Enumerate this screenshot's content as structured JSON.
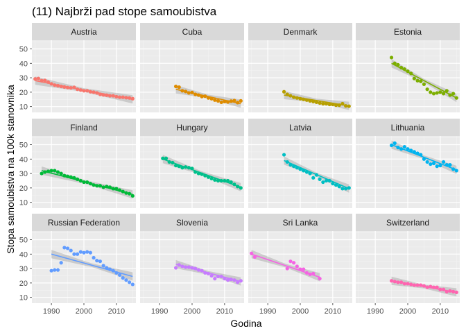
{
  "chart_data": {
    "type": "scatter",
    "title": "(11) Najbrži pad stope samoubistva",
    "xlabel": "Godina",
    "ylabel": "Stopa samoubistva na 100k stanovnika",
    "xlim": [
      1984,
      2016
    ],
    "ylim": [
      6,
      56
    ],
    "x_ticks": [
      1990,
      2000,
      2010
    ],
    "y_ticks": [
      10,
      20,
      30,
      40,
      50
    ],
    "grid": true,
    "legend": "none",
    "trend": "linear fit with confidence band",
    "panels": [
      {
        "name": "Austria",
        "color": "#F8766D",
        "x": [
          1985,
          1986,
          1987,
          1988,
          1989,
          1990,
          1991,
          1992,
          1993,
          1994,
          1995,
          1996,
          1997,
          1998,
          1999,
          2000,
          2001,
          2002,
          2003,
          2004,
          2005,
          2006,
          2007,
          2008,
          2009,
          2010,
          2011,
          2012,
          2013,
          2014,
          2015
        ],
        "y": [
          29.2,
          29.5,
          28.0,
          28.2,
          27.0,
          25.8,
          24.9,
          24.5,
          24.0,
          23.6,
          23.2,
          23.0,
          23.4,
          22.0,
          21.5,
          21.0,
          21.0,
          20.3,
          20.0,
          19.5,
          18.5,
          18.1,
          17.9,
          17.5,
          17.5,
          16.9,
          16.5,
          16.5,
          16.2,
          16.0,
          15.5
        ],
        "fit": [
          28.0,
          15.0
        ]
      },
      {
        "name": "Cuba",
        "color": "#DE8C00",
        "x": [
          1995,
          1996,
          1997,
          1998,
          1999,
          2000,
          2001,
          2002,
          2003,
          2004,
          2005,
          2006,
          2007,
          2008,
          2009,
          2010,
          2011,
          2012,
          2013,
          2014,
          2015
        ],
        "y": [
          24.0,
          23.5,
          21.0,
          20.5,
          19.5,
          19.8,
          18.5,
          18.0,
          17.0,
          17.2,
          16.0,
          15.5,
          14.5,
          14.0,
          13.0,
          13.5,
          13.2,
          13.8,
          14.2,
          12.8,
          14.0
        ],
        "fit": [
          22.0,
          12.0
        ]
      },
      {
        "name": "Denmark",
        "color": "#B79F00",
        "x": [
          1995,
          1996,
          1997,
          1998,
          1999,
          2000,
          2001,
          2002,
          2003,
          2004,
          2005,
          2006,
          2007,
          2008,
          2009,
          2010,
          2011,
          2012,
          2013,
          2014,
          2015
        ],
        "y": [
          20.3,
          18.5,
          17.5,
          16.5,
          16.0,
          15.5,
          15.0,
          14.5,
          14.0,
          13.5,
          13.0,
          12.5,
          12.0,
          12.0,
          11.5,
          11.5,
          11.0,
          11.0,
          12.0,
          10.5,
          10.3
        ],
        "fit": [
          18.0,
          10.5
        ]
      },
      {
        "name": "Estonia",
        "color": "#7CAE00",
        "x": [
          1995,
          1996,
          1997,
          1998,
          1999,
          2000,
          2001,
          2002,
          2003,
          2004,
          2005,
          2006,
          2007,
          2008,
          2009,
          2010,
          2011,
          2012,
          2013,
          2014,
          2015
        ],
        "y": [
          44.0,
          40.0,
          39.0,
          37.0,
          36.0,
          34.5,
          33.0,
          29.5,
          28.0,
          27.5,
          25.5,
          22.0,
          20.0,
          19.0,
          19.5,
          20.0,
          19.0,
          21.0,
          18.0,
          19.0,
          16.0
        ],
        "fit": [
          40.0,
          16.0
        ]
      },
      {
        "name": "Finland",
        "color": "#00BA38",
        "x": [
          1987,
          1988,
          1989,
          1990,
          1991,
          1992,
          1993,
          1994,
          1995,
          1996,
          1997,
          1998,
          1999,
          2000,
          2001,
          2002,
          2003,
          2004,
          2005,
          2006,
          2007,
          2008,
          2009,
          2010,
          2011,
          2012,
          2013,
          2014,
          2015
        ],
        "y": [
          30.0,
          31.0,
          31.5,
          32.0,
          32.0,
          31.0,
          30.0,
          28.5,
          28.0,
          27.5,
          27.0,
          26.0,
          25.0,
          24.0,
          24.0,
          23.0,
          22.0,
          21.5,
          21.5,
          20.5,
          21.0,
          20.5,
          19.5,
          19.5,
          18.5,
          17.5,
          16.5,
          16.0,
          14.5
        ],
        "fit": [
          32.0,
          15.5
        ]
      },
      {
        "name": "Hungary",
        "color": "#00C08B",
        "x": [
          1991,
          1992,
          1993,
          1994,
          1995,
          1996,
          1997,
          1998,
          1999,
          2000,
          2001,
          2002,
          2003,
          2004,
          2005,
          2006,
          2007,
          2008,
          2009,
          2010,
          2011,
          2012,
          2013,
          2014,
          2015
        ],
        "y": [
          40.5,
          40.5,
          38.0,
          37.5,
          35.5,
          35.0,
          34.0,
          34.5,
          34.0,
          33.5,
          31.0,
          30.0,
          29.5,
          28.5,
          27.5,
          26.5,
          25.5,
          25.0,
          25.0,
          25.0,
          25.0,
          24.0,
          22.5,
          21.0,
          20.0
        ],
        "fit": [
          40.0,
          20.5
        ]
      },
      {
        "name": "Latvia",
        "color": "#00BFC4",
        "x": [
          1995,
          1996,
          1997,
          1998,
          1999,
          2000,
          2001,
          2002,
          2003,
          2004,
          2005,
          2006,
          2007,
          2008,
          2009,
          2010,
          2011,
          2012,
          2013,
          2014,
          2015
        ],
        "y": [
          43.0,
          38.0,
          36.0,
          35.0,
          34.0,
          33.0,
          32.0,
          31.0,
          30.0,
          27.0,
          29.0,
          26.0,
          24.0,
          25.0,
          25.0,
          23.0,
          22.0,
          21.0,
          19.5,
          19.5,
          20.0
        ],
        "fit": [
          39.0,
          19.5
        ]
      },
      {
        "name": "Lithuania",
        "color": "#00B4F0",
        "x": [
          1995,
          1996,
          1997,
          1998,
          1999,
          2000,
          2001,
          2002,
          2003,
          2004,
          2005,
          2006,
          2007,
          2008,
          2009,
          2010,
          2011,
          2012,
          2013,
          2014,
          2015
        ],
        "y": [
          49.5,
          51.0,
          48.0,
          47.0,
          48.5,
          47.0,
          46.0,
          45.0,
          44.0,
          43.0,
          40.0,
          38.0,
          36.5,
          37.0,
          35.0,
          35.5,
          38.0,
          36.0,
          36.0,
          33.0,
          32.0
        ],
        "fit": [
          50.0,
          32.5
        ]
      },
      {
        "name": "Russian Federation",
        "color": "#619CFF",
        "x": [
          1990,
          1991,
          1992,
          1993,
          1994,
          1995,
          1996,
          1997,
          1998,
          1999,
          2000,
          2001,
          2002,
          2003,
          2004,
          2005,
          2006,
          2007,
          2008,
          2009,
          2010,
          2011,
          2012,
          2013,
          2014,
          2015
        ],
        "y": [
          28.5,
          29.0,
          29.0,
          34.0,
          44.5,
          44.0,
          42.5,
          40.0,
          40.0,
          41.5,
          41.0,
          41.5,
          41.0,
          37.5,
          35.5,
          35.0,
          32.0,
          30.5,
          29.5,
          28.5,
          27.0,
          25.5,
          23.5,
          22.0,
          20.5,
          19.0
        ],
        "fit": [
          40.0,
          24.5
        ]
      },
      {
        "name": "Slovenia",
        "color": "#C77CFF",
        "x": [
          1995,
          1996,
          1997,
          1998,
          1999,
          2000,
          2001,
          2002,
          2003,
          2004,
          2005,
          2006,
          2007,
          2008,
          2009,
          2010,
          2011,
          2012,
          2013,
          2014,
          2015
        ],
        "y": [
          30.5,
          32.5,
          31.5,
          31.0,
          31.0,
          30.5,
          30.0,
          29.0,
          28.5,
          27.0,
          26.5,
          25.0,
          23.0,
          24.5,
          24.5,
          23.0,
          22.0,
          22.5,
          22.0,
          20.5,
          21.5
        ],
        "fit": [
          33.0,
          21.0
        ]
      },
      {
        "name": "Sri Lanka",
        "color": "#F564E3",
        "x": [
          1985,
          1986,
          1996,
          1997,
          1998,
          1999,
          2000,
          2001,
          2002,
          2003,
          2004,
          2006
        ],
        "y": [
          40.5,
          38.0,
          30.0,
          35.0,
          34.0,
          31.5,
          29.5,
          29.5,
          27.0,
          26.0,
          26.5,
          23.0
        ],
        "fit": [
          40.0,
          24.0
        ]
      },
      {
        "name": "Switzerland",
        "color": "#FF64B0",
        "x": [
          1995,
          1996,
          1997,
          1998,
          1999,
          2000,
          2001,
          2002,
          2003,
          2004,
          2005,
          2006,
          2007,
          2008,
          2009,
          2010,
          2011,
          2012,
          2013,
          2014,
          2015
        ],
        "y": [
          21.5,
          21.0,
          20.5,
          20.5,
          19.5,
          19.5,
          19.0,
          18.5,
          18.5,
          18.5,
          18.0,
          17.0,
          17.5,
          17.0,
          17.0,
          15.5,
          15.5,
          14.0,
          14.5,
          14.0,
          13.5
        ],
        "fit": [
          21.5,
          13.5
        ]
      }
    ]
  }
}
